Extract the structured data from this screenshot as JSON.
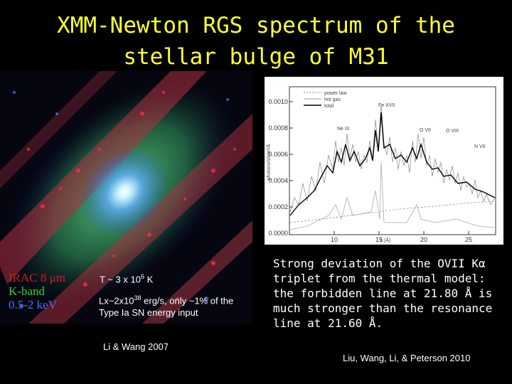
{
  "title": {
    "line1": "XMM-Newton RGS spectrum of the",
    "line2": "stellar bulge of M31"
  },
  "image_legend": {
    "irac": "IRAC 8 μm",
    "kband": "K-band",
    "xray": "0.5-2 keV",
    "colors": {
      "irac": "#d02020",
      "kband": "#28d828",
      "xray": "#4a70ff"
    }
  },
  "notes": {
    "temperature_pre": "T ~ 3 x 10",
    "temperature_exp": "6",
    "temperature_post": " K",
    "lx_pre": "Lx~2x10",
    "lx_exp": "38",
    "lx_post": " erg/s, only ~1% of the Type Ia SN energy input",
    "ref1": "Li & Wang 2007"
  },
  "spectrum_plot": {
    "legend": [
      "power law",
      "hot gas",
      "total"
    ],
    "y_ticks": [
      "0.0010",
      "0.0008",
      "0.0006",
      "0.0004",
      "0.0002",
      "0.0000"
    ],
    "x_ticks": [
      "10",
      "15",
      "20",
      "25"
    ],
    "ylabel": "photons/s/cm²/Å",
    "xlabel": "λ (Å)",
    "line_labels": [
      "Fe XVII",
      "Ne IX",
      "O VII",
      "O VIII",
      "N VII"
    ]
  },
  "description": "Strong deviation of the OVII Kα triplet from the thermal model: the forbidden line at 21.80 Å is much stronger than the resonance line at 21.60 Å.",
  "ref2": "Liu, Wang, Li, & Peterson 2010"
}
